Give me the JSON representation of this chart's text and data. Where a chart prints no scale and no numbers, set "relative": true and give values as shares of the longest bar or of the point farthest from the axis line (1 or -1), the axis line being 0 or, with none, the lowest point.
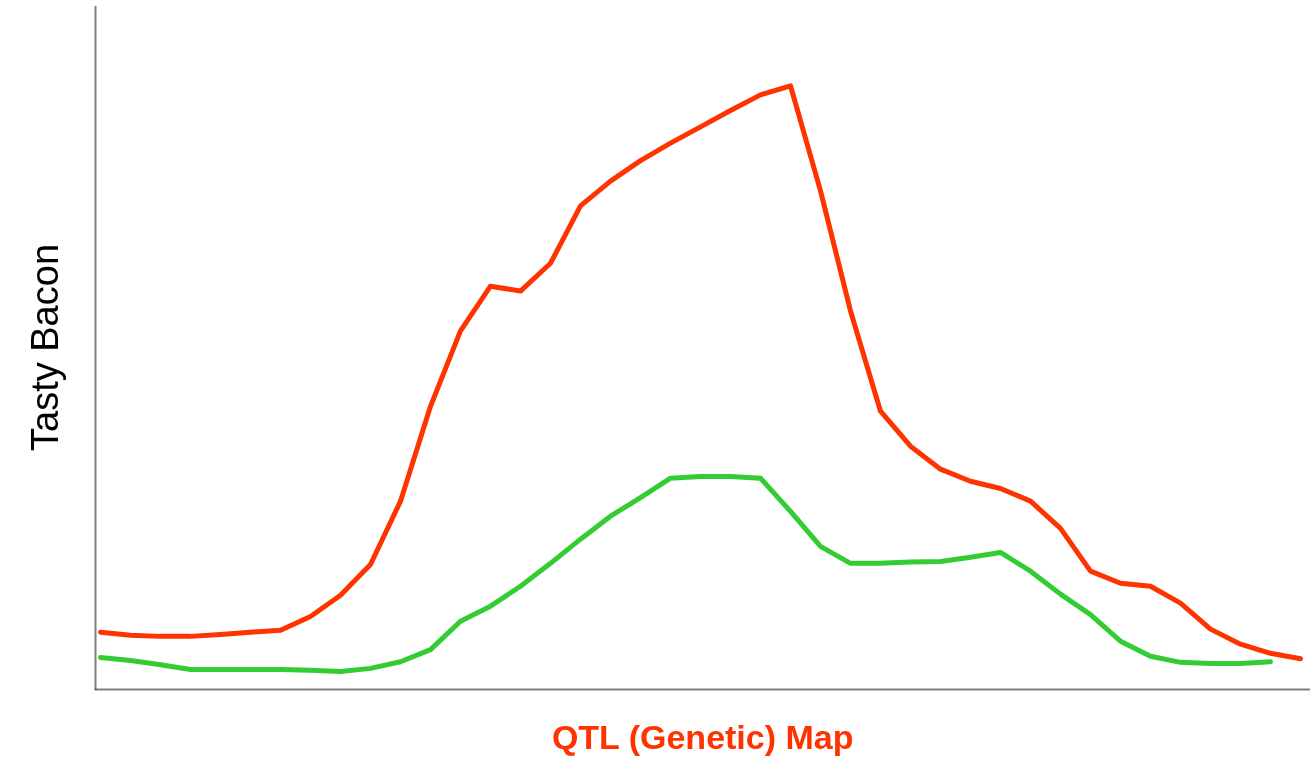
{
  "chart_data": {
    "type": "line",
    "relative": true,
    "xlabel": "QTL (Genetic) Map",
    "ylabel": "Tasty Bacon",
    "marker": "none",
    "line_style": "solid",
    "categories": [
      null,
      null,
      null,
      null,
      null,
      null,
      null,
      null,
      null,
      null,
      null,
      null,
      null,
      null,
      null,
      null,
      null,
      null,
      null,
      null,
      null,
      null,
      null,
      null,
      null,
      null,
      null,
      null,
      null,
      null,
      null,
      null,
      null,
      null,
      null,
      null,
      null,
      null,
      null,
      null,
      null
    ],
    "series": [
      {
        "color": "#ff3300",
        "values": [
          0.095,
          0.09,
          0.088,
          0.088,
          0.091,
          0.095,
          0.098,
          0.121,
          0.156,
          0.207,
          0.312,
          0.469,
          0.594,
          0.668,
          0.66,
          0.706,
          0.801,
          0.842,
          0.876,
          0.905,
          0.932,
          0.959,
          0.985,
          1.0,
          0.826,
          0.627,
          0.461,
          0.403,
          0.365,
          0.345,
          0.333,
          0.312,
          0.267,
          0.196,
          0.176,
          0.171,
          0.143,
          0.1,
          0.075,
          0.06,
          0.051
        ]
      },
      {
        "color": "#33cc33",
        "values": [
          0.053,
          0.048,
          0.041,
          0.033,
          0.033,
          0.033,
          0.033,
          0.032,
          0.03,
          0.035,
          0.046,
          0.066,
          0.113,
          0.138,
          0.171,
          0.209,
          0.249,
          0.287,
          0.318,
          0.35,
          0.353,
          0.353,
          0.35,
          0.295,
          0.237,
          0.209,
          0.209,
          0.211,
          0.212,
          0.219,
          0.227,
          0.196,
          0.158,
          0.124,
          0.08,
          0.055,
          0.045,
          0.043,
          0.043,
          0.046,
          null
        ]
      }
    ]
  }
}
